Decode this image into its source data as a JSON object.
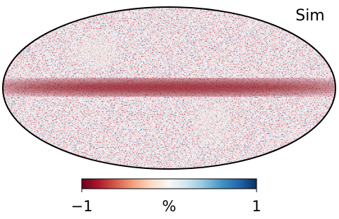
{
  "map": {
    "label": "Sim",
    "colorbar": {
      "lim": [
        -1,
        1
      ],
      "ticks": [
        {
          "value": -1,
          "label": "−1"
        },
        1
      ],
      "unit": "%",
      "colormap": [
        "#67001f",
        "#b2182b",
        "#d6604d",
        "#f4a582",
        "#fddbc7",
        "#f7f7f7",
        "#d1e5f0",
        "#92c5de",
        "#4393c3",
        "#2166ac",
        "#053061"
      ]
    }
  }
}
